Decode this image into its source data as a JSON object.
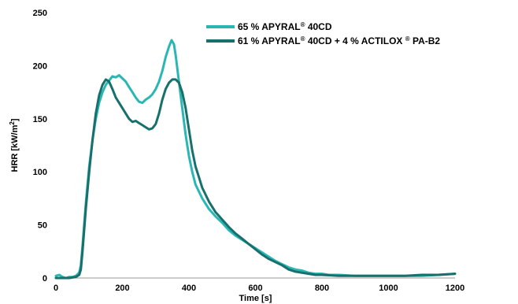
{
  "chart_data": {
    "type": "line",
    "xlabel": "Time [s]",
    "ylabel_main": "HRR [kW/m",
    "ylabel_sup": "2",
    "ylabel_end": "]",
    "xlim": [
      0,
      1200
    ],
    "ylim": [
      0,
      250
    ],
    "xticks": [
      0,
      200,
      400,
      600,
      800,
      1000,
      1200
    ],
    "yticks": [
      0,
      50,
      100,
      150,
      200,
      250
    ],
    "grid": false,
    "legend_position": "top-right",
    "series": [
      {
        "name": "65 % APYRAL® 40CD",
        "legend": [
          {
            "t": "65 % APYRAL",
            "sup": false
          },
          {
            "t": "®",
            "sup": true
          },
          {
            "t": " 40CD",
            "sup": false
          }
        ],
        "color": "#2ab7b4",
        "points": [
          [
            0,
            2
          ],
          [
            10,
            3
          ],
          [
            20,
            1
          ],
          [
            30,
            0
          ],
          [
            40,
            1
          ],
          [
            50,
            1
          ],
          [
            60,
            2
          ],
          [
            70,
            5
          ],
          [
            75,
            12
          ],
          [
            80,
            30
          ],
          [
            90,
            70
          ],
          [
            100,
            105
          ],
          [
            110,
            130
          ],
          [
            120,
            150
          ],
          [
            130,
            165
          ],
          [
            140,
            175
          ],
          [
            150,
            182
          ],
          [
            160,
            186
          ],
          [
            170,
            190
          ],
          [
            180,
            189
          ],
          [
            190,
            191
          ],
          [
            200,
            188
          ],
          [
            210,
            185
          ],
          [
            220,
            180
          ],
          [
            230,
            175
          ],
          [
            240,
            170
          ],
          [
            250,
            166
          ],
          [
            260,
            165
          ],
          [
            270,
            168
          ],
          [
            280,
            170
          ],
          [
            290,
            173
          ],
          [
            300,
            178
          ],
          [
            310,
            185
          ],
          [
            320,
            195
          ],
          [
            330,
            208
          ],
          [
            340,
            218
          ],
          [
            348,
            224
          ],
          [
            355,
            220
          ],
          [
            360,
            210
          ],
          [
            370,
            185
          ],
          [
            380,
            160
          ],
          [
            390,
            135
          ],
          [
            400,
            115
          ],
          [
            410,
            100
          ],
          [
            420,
            88
          ],
          [
            440,
            75
          ],
          [
            460,
            65
          ],
          [
            480,
            58
          ],
          [
            500,
            52
          ],
          [
            520,
            45
          ],
          [
            540,
            40
          ],
          [
            560,
            36
          ],
          [
            580,
            32
          ],
          [
            600,
            28
          ],
          [
            620,
            24
          ],
          [
            640,
            20
          ],
          [
            660,
            16
          ],
          [
            680,
            13
          ],
          [
            700,
            10
          ],
          [
            720,
            8
          ],
          [
            740,
            7
          ],
          [
            760,
            5
          ],
          [
            780,
            4
          ],
          [
            800,
            4
          ],
          [
            820,
            3
          ],
          [
            850,
            3
          ],
          [
            900,
            2
          ],
          [
            950,
            2
          ],
          [
            1000,
            2
          ],
          [
            1050,
            2
          ],
          [
            1100,
            2
          ],
          [
            1150,
            3
          ],
          [
            1200,
            4
          ]
        ]
      },
      {
        "name": "61 % APYRAL® 40CD + 4 % ACTILOX ® PA-B2",
        "legend": [
          {
            "t": "61 % APYRAL",
            "sup": false
          },
          {
            "t": "®",
            "sup": true
          },
          {
            "t": " 40CD + 4 % ACTILOX ",
            "sup": false
          },
          {
            "t": "®",
            "sup": true
          },
          {
            "t": " PA-B2",
            "sup": false
          }
        ],
        "color": "#17706c",
        "points": [
          [
            0,
            0
          ],
          [
            20,
            0
          ],
          [
            40,
            0
          ],
          [
            60,
            1
          ],
          [
            70,
            3
          ],
          [
            75,
            8
          ],
          [
            80,
            25
          ],
          [
            90,
            65
          ],
          [
            100,
            100
          ],
          [
            110,
            130
          ],
          [
            120,
            155
          ],
          [
            130,
            172
          ],
          [
            140,
            182
          ],
          [
            150,
            187
          ],
          [
            160,
            185
          ],
          [
            170,
            178
          ],
          [
            180,
            170
          ],
          [
            190,
            165
          ],
          [
            200,
            160
          ],
          [
            210,
            155
          ],
          [
            220,
            150
          ],
          [
            230,
            147
          ],
          [
            240,
            148
          ],
          [
            250,
            146
          ],
          [
            260,
            144
          ],
          [
            270,
            142
          ],
          [
            280,
            140
          ],
          [
            290,
            141
          ],
          [
            300,
            145
          ],
          [
            310,
            155
          ],
          [
            320,
            168
          ],
          [
            330,
            178
          ],
          [
            340,
            184
          ],
          [
            350,
            187
          ],
          [
            360,
            187
          ],
          [
            370,
            184
          ],
          [
            380,
            175
          ],
          [
            390,
            160
          ],
          [
            400,
            140
          ],
          [
            410,
            120
          ],
          [
            420,
            105
          ],
          [
            430,
            95
          ],
          [
            440,
            85
          ],
          [
            460,
            72
          ],
          [
            480,
            62
          ],
          [
            500,
            55
          ],
          [
            520,
            48
          ],
          [
            540,
            42
          ],
          [
            560,
            37
          ],
          [
            580,
            32
          ],
          [
            600,
            27
          ],
          [
            620,
            22
          ],
          [
            640,
            18
          ],
          [
            660,
            15
          ],
          [
            680,
            12
          ],
          [
            700,
            8
          ],
          [
            720,
            6
          ],
          [
            740,
            5
          ],
          [
            760,
            4
          ],
          [
            780,
            3
          ],
          [
            800,
            3
          ],
          [
            850,
            2
          ],
          [
            900,
            2
          ],
          [
            950,
            2
          ],
          [
            1000,
            2
          ],
          [
            1050,
            2
          ],
          [
            1100,
            3
          ],
          [
            1150,
            3
          ],
          [
            1200,
            4
          ]
        ]
      }
    ]
  }
}
